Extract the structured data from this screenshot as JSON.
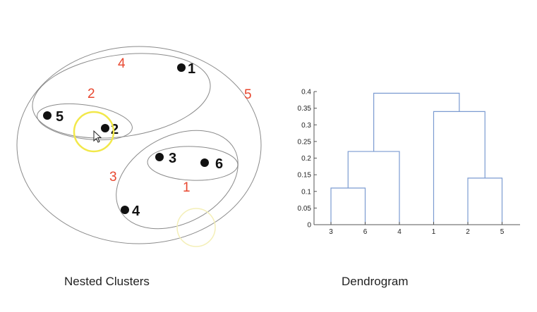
{
  "nested_clusters": {
    "caption": "Nested Clusters",
    "points": [
      {
        "label": "1"
      },
      {
        "label": "2"
      },
      {
        "label": "3"
      },
      {
        "label": "4"
      },
      {
        "label": "5"
      },
      {
        "label": "6"
      }
    ],
    "cluster_labels": [
      "1",
      "2",
      "3",
      "4",
      "5"
    ],
    "cluster_label_color": "#e8472f",
    "highlight_color": "#f2e84a"
  },
  "chart_data": {
    "type": "dendrogram",
    "title": "Dendrogram",
    "leaf_order": [
      "3",
      "6",
      "4",
      "1",
      "2",
      "5"
    ],
    "yticks": [
      "0",
      "0.05",
      "0.1",
      "0.15",
      "0.2",
      "0.25",
      "0.3",
      "0.35",
      "0.4"
    ],
    "ylim": [
      0,
      0.4
    ],
    "merges": [
      {
        "left": "3",
        "right": "6",
        "height": 0.11
      },
      {
        "left": "2",
        "right": "5",
        "height": 0.14
      },
      {
        "left": "3,6",
        "right": "4",
        "height": 0.22
      },
      {
        "left": "1",
        "right": "2,5",
        "height": 0.34
      },
      {
        "left": "3,6,4",
        "right": "1,2,5",
        "height": 0.395
      }
    ],
    "link_color": "#7b9bd1"
  }
}
